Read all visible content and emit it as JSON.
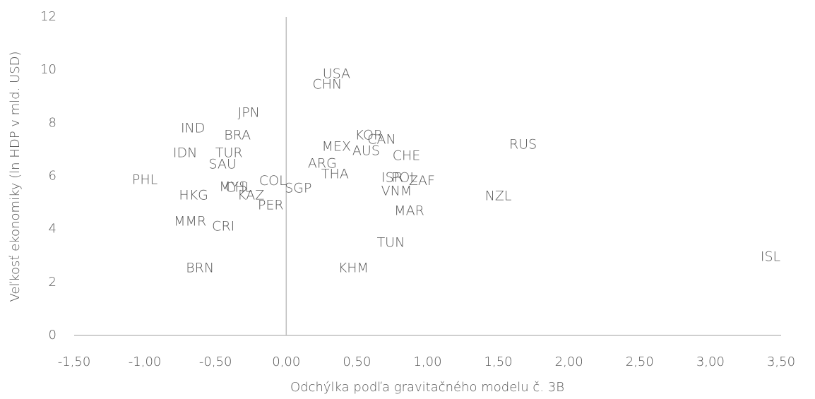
{
  "chart_data": {
    "type": "scatter",
    "xlabel": "Odchýlka podľa gravitačného modelu č. 3B",
    "ylabel": "Veľkosť ekonomiky (ln HDP v mld. USD)",
    "color": "#595959",
    "labels": [
      "USA",
      "CHN",
      "JPN",
      "IND",
      "BRA",
      "KOR",
      "CAN",
      "RUS",
      "MEX",
      "AUS",
      "IDN",
      "TUR",
      "CHE",
      "SAU",
      "ARG",
      "THA",
      "ISR",
      "POL",
      "ZAF",
      "PHL",
      "COL",
      "MYS",
      "CHL",
      "SGP",
      "VNM",
      "HKG",
      "KAZ",
      "NZL",
      "PER",
      "MAR",
      "MMR",
      "CRI",
      "TUN",
      "ISL",
      "BRN",
      "KHM"
    ],
    "x": [
      0.355,
      0.29,
      -0.265,
      -0.66,
      -0.345,
      0.585,
      0.675,
      1.675,
      0.355,
      0.565,
      -0.715,
      -0.405,
      0.85,
      -0.45,
      0.255,
      0.345,
      0.75,
      0.835,
      0.96,
      -1.0,
      -0.095,
      -0.375,
      -0.335,
      0.085,
      0.78,
      -0.655,
      -0.25,
      1.5,
      -0.11,
      0.87,
      -0.68,
      -0.445,
      0.74,
      3.425,
      -0.61,
      0.475
    ],
    "values": [
      9.84,
      9.44,
      8.38,
      7.79,
      7.53,
      7.53,
      7.37,
      7.18,
      7.1,
      6.94,
      6.86,
      6.86,
      6.76,
      6.44,
      6.46,
      6.06,
      5.93,
      5.93,
      5.82,
      5.85,
      5.82,
      5.59,
      5.56,
      5.53,
      5.43,
      5.27,
      5.27,
      5.24,
      4.89,
      4.68,
      4.28,
      4.1,
      3.48,
      2.95,
      2.53,
      2.53
    ],
    "xlim": [
      -1.5,
      3.5
    ],
    "xticks": [
      {
        "value": -1.5,
        "label": "-1,50"
      },
      {
        "value": -1.0,
        "label": "-1,00"
      },
      {
        "value": -0.5,
        "label": "-0,50"
      },
      {
        "value": 0,
        "label": "0,00"
      },
      {
        "value": 0.5,
        "label": "0,50"
      },
      {
        "value": 1.0,
        "label": "1,00"
      },
      {
        "value": 1.5,
        "label": "1,50"
      },
      {
        "value": 2.0,
        "label": "2,00"
      },
      {
        "value": 2.5,
        "label": "2,50"
      },
      {
        "value": 3.0,
        "label": "3,00"
      },
      {
        "value": 3.5,
        "label": "3,50"
      }
    ],
    "ylim": [
      0,
      12
    ],
    "yticks": [
      0,
      2,
      4,
      6,
      8,
      10,
      12
    ]
  }
}
